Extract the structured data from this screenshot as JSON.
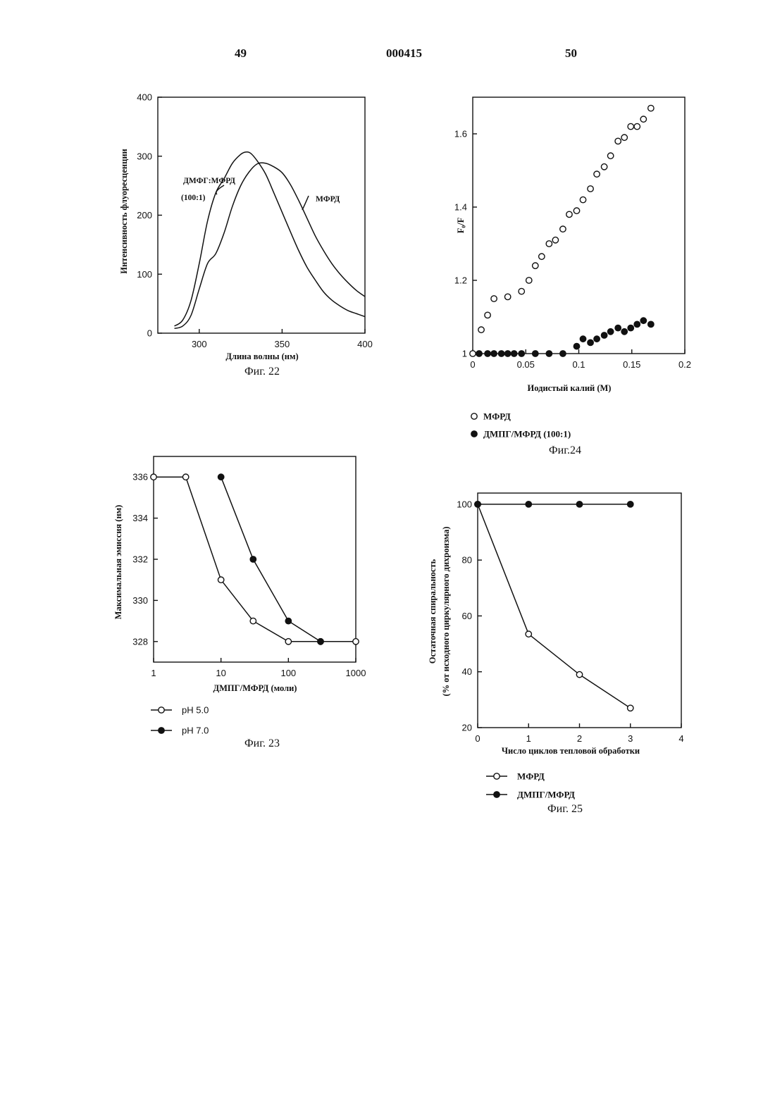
{
  "header": {
    "left_page": "49",
    "doc_number": "000415",
    "right_page": "50"
  },
  "colors": {
    "ink": "#111111",
    "background": "#ffffff"
  },
  "chart_data": [
    {
      "id": "fig22",
      "type": "line",
      "caption": "Фиг. 22",
      "xlabel": "Длина волны (нм)",
      "ylabel": "Интенсивность флуоресценции",
      "xlim": [
        275,
        400
      ],
      "ylim": [
        0,
        400
      ],
      "xticks": [
        "300",
        "350",
        "400"
      ],
      "yticks": [
        "0",
        "100",
        "200",
        "300",
        "400"
      ],
      "xtick_values": [
        300,
        350,
        400
      ],
      "ytick_values": [
        0,
        100,
        200,
        300,
        400
      ],
      "annotations": [
        "ДМФГ:МФРД",
        "(100:1)",
        "МФРД"
      ],
      "series": [
        {
          "name": "ДМФГ:МФРД (100:1)",
          "x": [
            285,
            290,
            295,
            300,
            305,
            310,
            315,
            320,
            325,
            328,
            331,
            335,
            340,
            345,
            350,
            355,
            360,
            365,
            370,
            375,
            380,
            385,
            390,
            395,
            400
          ],
          "y": [
            12,
            22,
            55,
            118,
            190,
            238,
            262,
            288,
            303,
            307,
            305,
            292,
            270,
            238,
            205,
            172,
            140,
            112,
            90,
            70,
            56,
            46,
            38,
            33,
            28
          ]
        },
        {
          "name": "МФРД",
          "x": [
            285,
            290,
            295,
            300,
            305,
            310,
            315,
            320,
            325,
            330,
            335,
            340,
            345,
            350,
            355,
            360,
            365,
            370,
            375,
            380,
            385,
            390,
            395,
            400
          ],
          "y": [
            8,
            12,
            30,
            75,
            118,
            135,
            170,
            215,
            250,
            273,
            287,
            288,
            282,
            272,
            252,
            225,
            195,
            165,
            140,
            118,
            100,
            85,
            72,
            62
          ]
        }
      ]
    },
    {
      "id": "fig23",
      "type": "line",
      "caption": "Фиг. 23",
      "xlabel": "ДМПГ/МФРД (моли)",
      "ylabel": "Максимальная эмиссия (нм)",
      "xscale": "log",
      "xlim": [
        1,
        1000
      ],
      "ylim": [
        327,
        337
      ],
      "xticks": [
        "1",
        "10",
        "100",
        "1000"
      ],
      "yticks": [
        "328",
        "330",
        "332",
        "334",
        "336"
      ],
      "xtick_values": [
        1,
        10,
        100,
        1000
      ],
      "ytick_values": [
        328,
        330,
        332,
        334,
        336
      ],
      "legend": [
        "pH 5.0",
        "pH 7.0"
      ],
      "series": [
        {
          "name": "pH 5.0",
          "marker": "open",
          "x": [
            1,
            3,
            10,
            30,
            100,
            300,
            1000
          ],
          "y": [
            336,
            336,
            331,
            329,
            328,
            328,
            328
          ]
        },
        {
          "name": "pH 7.0",
          "marker": "filled",
          "x": [
            10,
            30,
            100,
            300
          ],
          "y": [
            336,
            332,
            329,
            328
          ]
        }
      ]
    },
    {
      "id": "fig24",
      "type": "scatter",
      "caption": "Фиг.24",
      "xlabel": "Иодистый калий (М)",
      "ylabel": "F₀/F",
      "xlim": [
        0,
        0.2
      ],
      "ylim": [
        1,
        1.7
      ],
      "xticks": [
        "0",
        "0.05",
        "0.1",
        "0.15",
        "0.2"
      ],
      "yticks": [
        "1",
        "1.2",
        "1.4",
        "1.6"
      ],
      "xtick_values": [
        0,
        0.05,
        0.1,
        0.15,
        0.2
      ],
      "ytick_values": [
        1,
        1.2,
        1.4,
        1.6
      ],
      "legend": [
        "МФРД",
        "ДМПГ/МФРД (100:1)"
      ],
      "series": [
        {
          "name": "МФРД",
          "marker": "open",
          "x": [
            0,
            0.008,
            0.014,
            0.02,
            0.033,
            0.046,
            0.053,
            0.059,
            0.065,
            0.072,
            0.078,
            0.085,
            0.091,
            0.098,
            0.104,
            0.111,
            0.117,
            0.124,
            0.13,
            0.137,
            0.143,
            0.149,
            0.155,
            0.161,
            0.168
          ],
          "y": [
            1.0,
            1.065,
            1.105,
            1.15,
            1.155,
            1.17,
            1.2,
            1.24,
            1.265,
            1.3,
            1.31,
            1.34,
            1.38,
            1.39,
            1.42,
            1.45,
            1.49,
            1.51,
            1.54,
            1.58,
            1.59,
            1.62,
            1.62,
            1.64,
            1.67
          ]
        },
        {
          "name": "ДМПГ/МФРД (100:1)",
          "marker": "filled",
          "x": [
            0.006,
            0.014,
            0.02,
            0.027,
            0.033,
            0.039,
            0.046,
            0.059,
            0.072,
            0.085,
            0.098,
            0.104,
            0.111,
            0.117,
            0.124,
            0.13,
            0.137,
            0.143,
            0.149,
            0.155,
            0.161,
            0.168
          ],
          "y": [
            1.0,
            1.0,
            1.0,
            1.0,
            1.0,
            1.0,
            1.0,
            1.0,
            1.0,
            1.0,
            1.02,
            1.04,
            1.03,
            1.04,
            1.05,
            1.06,
            1.07,
            1.06,
            1.07,
            1.08,
            1.09,
            1.08
          ]
        }
      ]
    },
    {
      "id": "fig25",
      "type": "line",
      "caption": "Фиг. 25",
      "xlabel": "Число циклов тепловой обработки",
      "ylabel": "Остаточная спиральность",
      "ylabel2": "(% от исходного циркулярного дихроизма)",
      "xlim": [
        0,
        4
      ],
      "ylim": [
        20,
        104
      ],
      "xticks": [
        "0",
        "1",
        "2",
        "3",
        "4"
      ],
      "yticks": [
        "20",
        "40",
        "60",
        "80",
        "100"
      ],
      "xtick_values": [
        0,
        1,
        2,
        3,
        4
      ],
      "ytick_values": [
        20,
        40,
        60,
        80,
        100
      ],
      "legend": [
        "МФРД",
        "ДМПГ/МФРД"
      ],
      "series": [
        {
          "name": "МФРД",
          "marker": "open",
          "x": [
            0,
            1,
            2,
            3
          ],
          "y": [
            100,
            53.5,
            39,
            27
          ]
        },
        {
          "name": "ДМПГ/МФРД",
          "marker": "filled",
          "x": [
            0,
            1,
            2,
            3
          ],
          "y": [
            100,
            100,
            100,
            100
          ]
        }
      ]
    }
  ]
}
